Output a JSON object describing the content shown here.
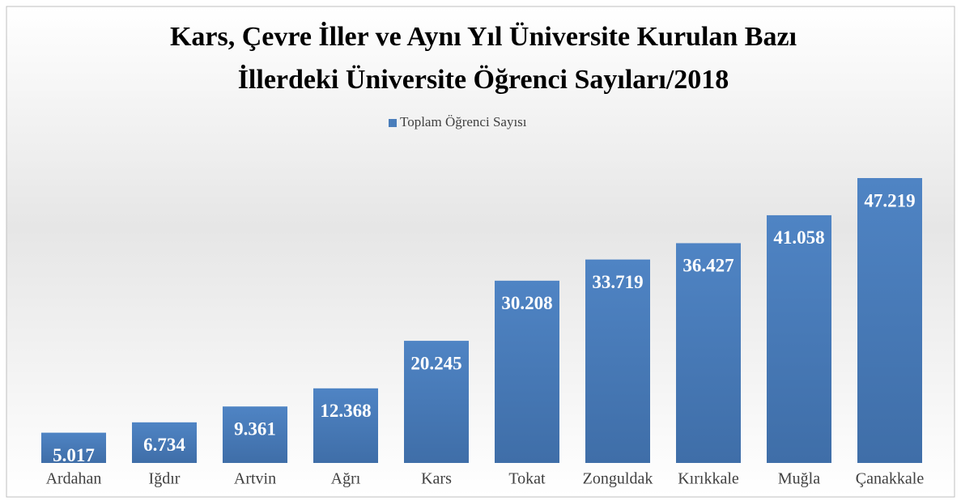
{
  "chart_data": {
    "type": "bar",
    "title": [
      "Kars, Çevre İller ve Aynı Yıl Üniversite Kurulan Bazı",
      "İllerdeki Üniversite Öğrenci Sayıları/2018"
    ],
    "categories": [
      "Ardahan",
      "Iğdır",
      "Artvin",
      "Ağrı",
      "Kars",
      "Tokat",
      "Zonguldak",
      "Kırıkkale",
      "Muğla",
      "Çanakkale"
    ],
    "series": [
      {
        "name": "Toplam Öğrenci Sayısı",
        "color": "#4a7ebb",
        "values": [
          5017,
          6734,
          9361,
          12368,
          20245,
          30208,
          33719,
          36427,
          41058,
          47219
        ],
        "value_labels": [
          "5.017",
          "6.734",
          "9.361",
          "12.368",
          "20.245",
          "30.208",
          "33.719",
          "36.427",
          "41.058",
          "47.219"
        ]
      }
    ],
    "legend": "top"
  }
}
